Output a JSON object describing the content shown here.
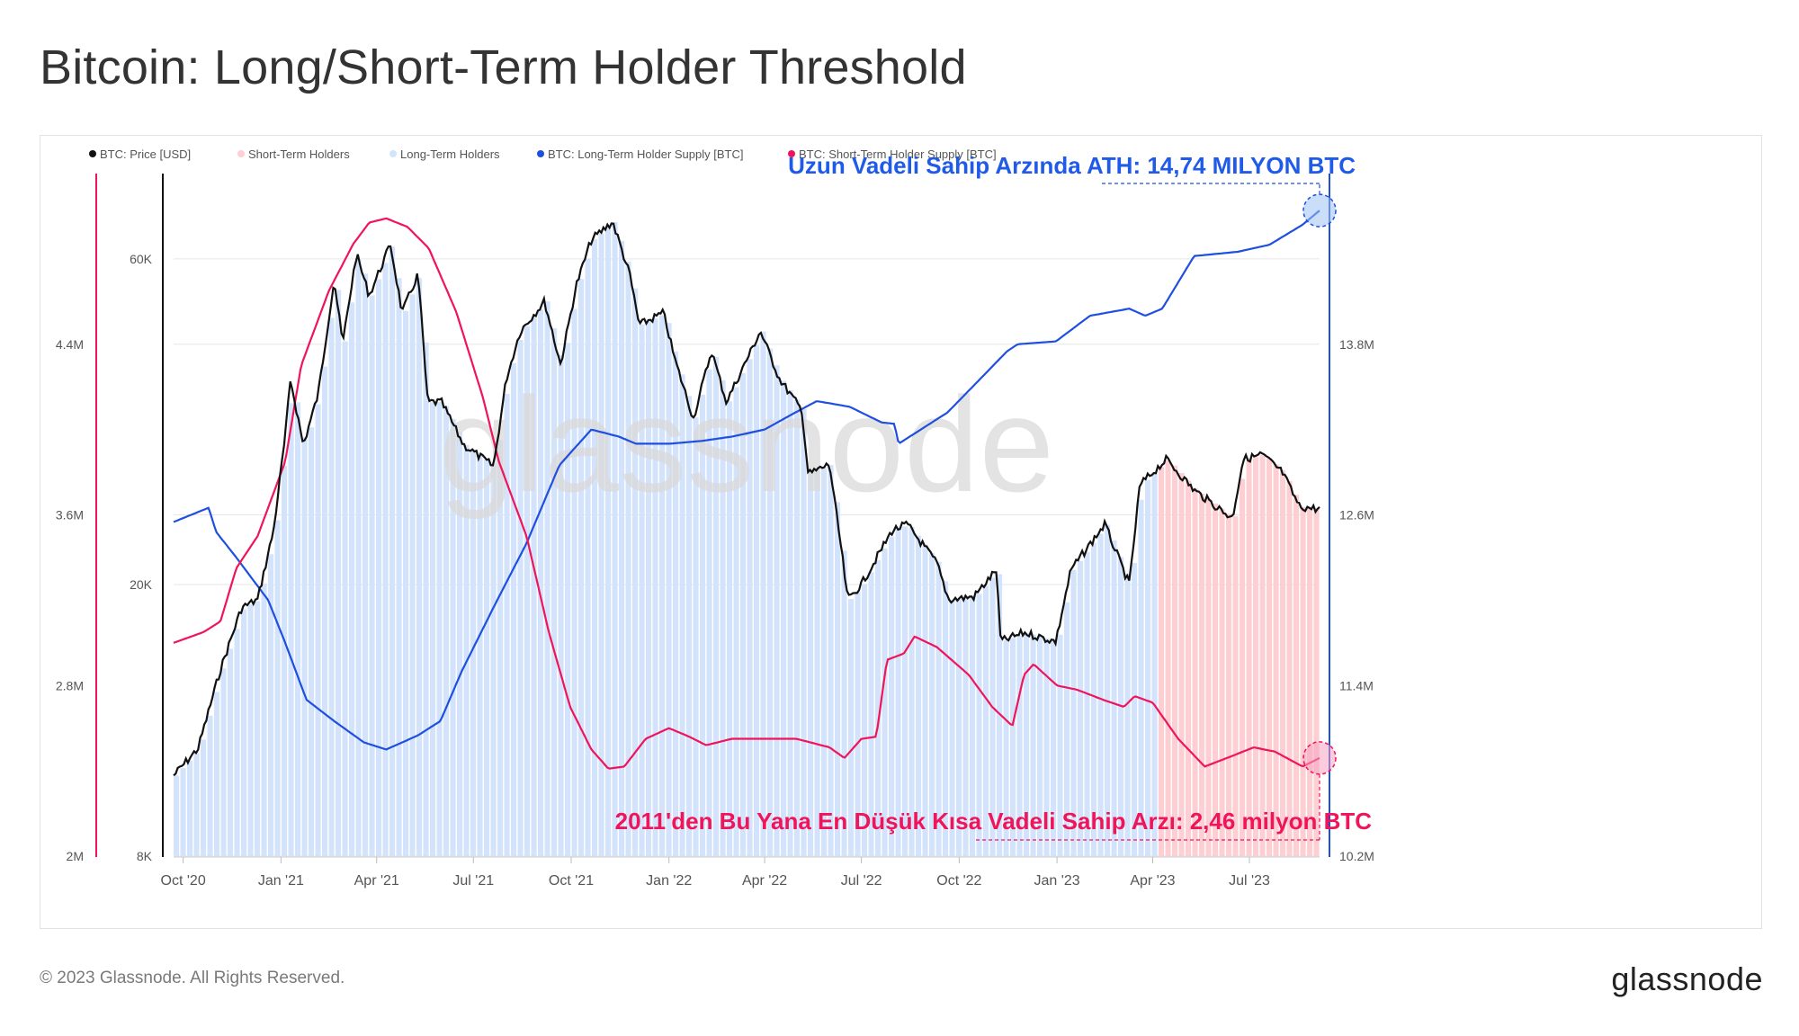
{
  "title": "Bitcoin: Long/Short-Term Holder Threshold",
  "footer": {
    "copyright": "© 2023 Glassnode. All Rights Reserved.",
    "brand": "glassnode"
  },
  "watermark": "glassnode",
  "colors": {
    "price": "#111111",
    "sth_fill": "#fdcfd3",
    "lth_fill": "#d2e3fb",
    "lth_line": "#1f4fe0",
    "sth_line": "#f0145a",
    "grid": "#e6e6e6"
  },
  "chart_data": {
    "type": "line",
    "legend": [
      {
        "label": "BTC: Price [USD]",
        "color": "#111111"
      },
      {
        "label": "Short-Term Holders",
        "color": "#fdcfd3"
      },
      {
        "label": "Long-Term Holders",
        "color": "#d2e3fb"
      },
      {
        "label": "BTC: Long-Term Holder Supply [BTC]",
        "color": "#1f4fe0"
      },
      {
        "label": "BTC: Short-Term Holder Supply [BTC]",
        "color": "#f0145a"
      }
    ],
    "legend_position": "top-left",
    "x_ticks": [
      "Oct '20",
      "Jan '21",
      "Apr '21",
      "Jul '21",
      "Oct '21",
      "Jan '22",
      "Apr '22",
      "Jul '22",
      "Oct '22",
      "Jan '23",
      "Apr '23",
      "Jul '23"
    ],
    "x_range": [
      "2020-09-22",
      "2023-09-05"
    ],
    "y_left_outer_ticks": [
      "2M",
      "2.8M",
      "3.6M",
      "4.4M"
    ],
    "y_left_outer_range": [
      2000000,
      5200000
    ],
    "y_left_price_ticks": [
      "8K",
      "20K",
      "60K"
    ],
    "y_left_price_scale": "log",
    "y_left_price_range": [
      8000,
      80000
    ],
    "y_right_ticks": [
      "10.2M",
      "11.4M",
      "12.6M",
      "13.8M"
    ],
    "y_right_range": [
      10200000,
      15000000
    ],
    "grid": true,
    "sth_region_start": "2023-04-01",
    "series": [
      {
        "name": "BTC: Price [USD]",
        "axis": "price",
        "points": [
          [
            "2020-09-22",
            10500
          ],
          [
            "2020-10-15",
            11500
          ],
          [
            "2020-11-05",
            15000
          ],
          [
            "2020-11-25",
            18500
          ],
          [
            "2020-12-10",
            19000
          ],
          [
            "2020-12-25",
            24000
          ],
          [
            "2021-01-05",
            33000
          ],
          [
            "2021-01-10",
            40000
          ],
          [
            "2021-01-22",
            32000
          ],
          [
            "2021-02-05",
            38000
          ],
          [
            "2021-02-20",
            56000
          ],
          [
            "2021-02-28",
            45000
          ],
          [
            "2021-03-13",
            61000
          ],
          [
            "2021-03-25",
            53000
          ],
          [
            "2021-04-14",
            63000
          ],
          [
            "2021-04-25",
            50000
          ],
          [
            "2021-05-10",
            57000
          ],
          [
            "2021-05-19",
            37000
          ],
          [
            "2021-06-01",
            37000
          ],
          [
            "2021-06-22",
            32000
          ],
          [
            "2021-07-20",
            29800
          ],
          [
            "2021-08-01",
            40000
          ],
          [
            "2021-08-14",
            47000
          ],
          [
            "2021-09-06",
            52000
          ],
          [
            "2021-09-21",
            42000
          ],
          [
            "2021-10-06",
            55000
          ],
          [
            "2021-10-20",
            64000
          ],
          [
            "2021-11-09",
            68000
          ],
          [
            "2021-11-25",
            57000
          ],
          [
            "2021-12-04",
            48000
          ],
          [
            "2021-12-27",
            50000
          ],
          [
            "2022-01-06",
            43000
          ],
          [
            "2022-01-24",
            35000
          ],
          [
            "2022-02-10",
            44000
          ],
          [
            "2022-02-24",
            37000
          ],
          [
            "2022-03-28",
            47000
          ],
          [
            "2022-04-15",
            40000
          ],
          [
            "2022-05-06",
            36000
          ],
          [
            "2022-05-12",
            29000
          ],
          [
            "2022-06-01",
            30000
          ],
          [
            "2022-06-13",
            22000
          ],
          [
            "2022-06-18",
            19000
          ],
          [
            "2022-07-01",
            20000
          ],
          [
            "2022-07-30",
            24000
          ],
          [
            "2022-08-13",
            24500
          ],
          [
            "2022-09-10",
            21500
          ],
          [
            "2022-09-21",
            19000
          ],
          [
            "2022-10-15",
            19200
          ],
          [
            "2022-11-05",
            21000
          ],
          [
            "2022-11-09",
            16500
          ],
          [
            "2022-12-01",
            17000
          ],
          [
            "2022-12-31",
            16500
          ],
          [
            "2023-01-14",
            21000
          ],
          [
            "2023-02-15",
            24500
          ],
          [
            "2023-03-10",
            20000
          ],
          [
            "2023-03-20",
            28000
          ],
          [
            "2023-04-14",
            30500
          ],
          [
            "2023-05-10",
            27500
          ],
          [
            "2023-06-15",
            25000
          ],
          [
            "2023-06-25",
            30500
          ],
          [
            "2023-07-13",
            31000
          ],
          [
            "2023-08-01",
            29200
          ],
          [
            "2023-08-17",
            26000
          ],
          [
            "2023-09-05",
            25800
          ]
        ]
      },
      {
        "name": "BTC: Long-Term Holder Supply [BTC]",
        "axis": "right",
        "points": [
          [
            "2020-09-22",
            12550000
          ],
          [
            "2020-10-25",
            12650000
          ],
          [
            "2020-11-01",
            12480000
          ],
          [
            "2020-11-20",
            12300000
          ],
          [
            "2020-12-20",
            12000000
          ],
          [
            "2021-01-05",
            11700000
          ],
          [
            "2021-01-25",
            11300000
          ],
          [
            "2021-02-20",
            11150000
          ],
          [
            "2021-03-20",
            11000000
          ],
          [
            "2021-04-10",
            10950000
          ],
          [
            "2021-05-10",
            11050000
          ],
          [
            "2021-05-31",
            11150000
          ],
          [
            "2021-06-20",
            11500000
          ],
          [
            "2021-07-20",
            11950000
          ],
          [
            "2021-08-20",
            12400000
          ],
          [
            "2021-09-20",
            12950000
          ],
          [
            "2021-10-20",
            13200000
          ],
          [
            "2021-11-15",
            13150000
          ],
          [
            "2021-12-01",
            13100000
          ],
          [
            "2022-01-01",
            13100000
          ],
          [
            "2022-02-01",
            13120000
          ],
          [
            "2022-03-01",
            13150000
          ],
          [
            "2022-04-01",
            13200000
          ],
          [
            "2022-04-25",
            13300000
          ],
          [
            "2022-05-20",
            13400000
          ],
          [
            "2022-06-20",
            13360000
          ],
          [
            "2022-07-20",
            13250000
          ],
          [
            "2022-08-01",
            13240000
          ],
          [
            "2022-08-05",
            13100000
          ],
          [
            "2022-09-20",
            13320000
          ],
          [
            "2022-10-20",
            13550000
          ],
          [
            "2022-11-15",
            13750000
          ],
          [
            "2022-11-25",
            13800000
          ],
          [
            "2022-12-31",
            13820000
          ],
          [
            "2023-02-01",
            14000000
          ],
          [
            "2023-03-10",
            14050000
          ],
          [
            "2023-03-25",
            14000000
          ],
          [
            "2023-04-10",
            14050000
          ],
          [
            "2023-05-10",
            14420000
          ],
          [
            "2023-06-20",
            14450000
          ],
          [
            "2023-07-20",
            14500000
          ],
          [
            "2023-08-20",
            14640000
          ],
          [
            "2023-09-05",
            14740000
          ]
        ]
      },
      {
        "name": "BTC: Short-Term Holder Supply [BTC]",
        "axis": "left",
        "points": [
          [
            "2020-09-22",
            3000000
          ],
          [
            "2020-10-20",
            3050000
          ],
          [
            "2020-11-05",
            3100000
          ],
          [
            "2020-11-20",
            3350000
          ],
          [
            "2020-12-10",
            3500000
          ],
          [
            "2021-01-05",
            3850000
          ],
          [
            "2021-01-20",
            4300000
          ],
          [
            "2021-02-15",
            4650000
          ],
          [
            "2021-03-10",
            4870000
          ],
          [
            "2021-03-25",
            4970000
          ],
          [
            "2021-04-10",
            4990000
          ],
          [
            "2021-04-30",
            4950000
          ],
          [
            "2021-05-20",
            4850000
          ],
          [
            "2021-06-15",
            4550000
          ],
          [
            "2021-07-10",
            4150000
          ],
          [
            "2021-07-25",
            3850000
          ],
          [
            "2021-08-20",
            3500000
          ],
          [
            "2021-09-10",
            3050000
          ],
          [
            "2021-09-30",
            2700000
          ],
          [
            "2021-10-20",
            2500000
          ],
          [
            "2021-11-05",
            2410000
          ],
          [
            "2021-11-20",
            2420000
          ],
          [
            "2021-12-10",
            2550000
          ],
          [
            "2022-01-01",
            2600000
          ],
          [
            "2022-01-20",
            2560000
          ],
          [
            "2022-02-05",
            2520000
          ],
          [
            "2022-03-01",
            2550000
          ],
          [
            "2022-04-01",
            2550000
          ],
          [
            "2022-05-01",
            2550000
          ],
          [
            "2022-06-01",
            2510000
          ],
          [
            "2022-06-15",
            2460000
          ],
          [
            "2022-07-01",
            2550000
          ],
          [
            "2022-07-15",
            2560000
          ],
          [
            "2022-07-25",
            2920000
          ],
          [
            "2022-08-10",
            2950000
          ],
          [
            "2022-08-20",
            3030000
          ],
          [
            "2022-09-10",
            2980000
          ],
          [
            "2022-10-10",
            2850000
          ],
          [
            "2022-11-01",
            2700000
          ],
          [
            "2022-11-20",
            2610000
          ],
          [
            "2022-12-01",
            2850000
          ],
          [
            "2022-12-10",
            2900000
          ],
          [
            "2023-01-01",
            2800000
          ],
          [
            "2023-01-20",
            2780000
          ],
          [
            "2023-02-15",
            2730000
          ],
          [
            "2023-03-05",
            2700000
          ],
          [
            "2023-03-15",
            2750000
          ],
          [
            "2023-04-01",
            2720000
          ],
          [
            "2023-04-25",
            2550000
          ],
          [
            "2023-05-20",
            2420000
          ],
          [
            "2023-06-15",
            2470000
          ],
          [
            "2023-07-05",
            2510000
          ],
          [
            "2023-07-25",
            2490000
          ],
          [
            "2023-08-20",
            2420000
          ],
          [
            "2023-09-05",
            2460000
          ]
        ]
      }
    ],
    "annotations": [
      {
        "text": "Uzun Vadeli Sahip Arzında ATH: 14,74 MILYON BTC",
        "color": "#1f5ae8"
      },
      {
        "text": "2011'den Bu Yana En Düşük Kısa Vadeli Sahip Arzı: 2,46 milyon BTC",
        "color": "#f0145a"
      }
    ]
  }
}
